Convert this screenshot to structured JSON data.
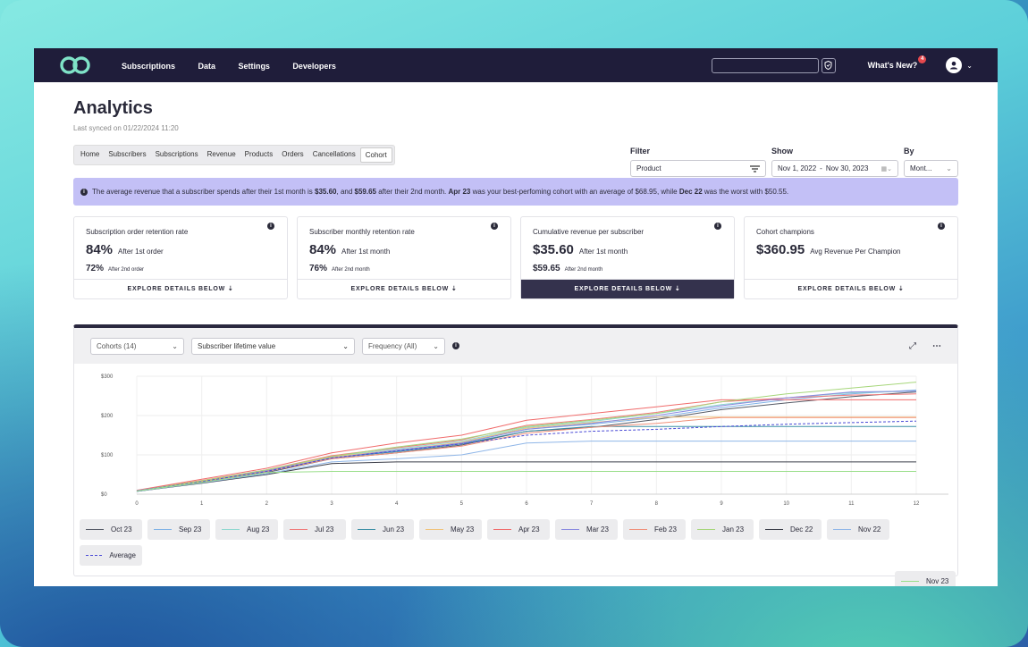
{
  "nav": {
    "items": [
      "Subscriptions",
      "Data",
      "Settings",
      "Developers"
    ],
    "whats_new": "What's New?",
    "whats_new_badge": "4"
  },
  "page": {
    "title": "Analytics",
    "synced": "Last synced on 01/22/2024 11:20"
  },
  "tabs": [
    "Home",
    "Subscribers",
    "Subscriptions",
    "Revenue",
    "Products",
    "Orders",
    "Cancellations",
    "Cohort"
  ],
  "active_tab": "Cohort",
  "filters": {
    "filter_label": "Filter",
    "filter_value": "Product",
    "show_label": "Show",
    "date_from": "Nov 1, 2022",
    "date_sep": "-",
    "date_to": "Nov 30, 2023",
    "by_label": "By",
    "by_value": "Mont..."
  },
  "banner": {
    "t1": "The average revenue that a subscriber spends after their 1st month is ",
    "b1": "$35.60",
    "t2": ", and ",
    "b2": "$59.65",
    "t3": " after their 2nd month. ",
    "b3": "Apr 23",
    "t4": " was your best-perfoming cohort with an average of $68.95, while ",
    "b4": "Dec 22",
    "t5": " was the worst with $50.55."
  },
  "cards": [
    {
      "title": "Subscription order retention rate",
      "big": "84%",
      "big_sub": "After 1st order",
      "small": "72%",
      "small_sub": "After 2nd order",
      "explore": "EXPLORE DETAILS BELOW"
    },
    {
      "title": "Subscriber monthly retention rate",
      "big": "84%",
      "big_sub": "After 1st month",
      "small": "76%",
      "small_sub": "After 2nd month",
      "explore": "EXPLORE DETAILS BELOW"
    },
    {
      "title": "Cumulative revenue per subscriber",
      "big": "$35.60",
      "big_sub": "After 1st month",
      "small": "$59.65",
      "small_sub": "After 2nd month",
      "explore": "EXPLORE DETAILS BELOW"
    },
    {
      "title": "Cohort champions",
      "big": "$360.95",
      "big_sub": "Avg Revenue Per Champion",
      "small": "",
      "small_sub": "",
      "explore": "EXPLORE DETAILS BELOW"
    }
  ],
  "chart_controls": {
    "cohorts": "Cohorts (14)",
    "metric": "Subscriber lifetime value",
    "frequency": "Frequency (All)"
  },
  "chart_data": {
    "type": "line",
    "x": [
      0,
      1,
      2,
      3,
      4,
      5,
      6,
      7,
      8,
      9,
      10,
      11,
      12
    ],
    "ylim": [
      0,
      300
    ],
    "yticks": [
      "$0",
      "$100",
      "$200",
      "$300"
    ],
    "ytick_values": [
      0,
      100,
      200,
      300
    ],
    "grid": true,
    "legend_position": "bottom",
    "series": [
      {
        "name": "Oct 23",
        "color": "#555a66",
        "values": [
          8,
          30,
          55,
          90,
          105,
          125,
          160,
          170,
          190,
          215,
          232,
          248,
          260
        ]
      },
      {
        "name": "Sep 23",
        "color": "#7fb2e6",
        "values": [
          7,
          31,
          57,
          92,
          110,
          130,
          165,
          178,
          195,
          220,
          240,
          255,
          265
        ]
      },
      {
        "name": "Aug 23",
        "color": "#8fd8cf",
        "values": [
          8,
          33,
          60,
          96,
          115,
          135,
          170,
          185,
          205,
          228,
          245,
          258,
          262
        ]
      },
      {
        "name": "Jul 23",
        "color": "#f07a7a",
        "values": [
          9,
          35,
          62,
          98,
          118,
          138,
          175,
          190,
          208,
          235,
          245,
          252,
          255
        ]
      },
      {
        "name": "Jun 23",
        "color": "#3d8fa6",
        "values": [
          8,
          32,
          58,
          93,
          108,
          128,
          160,
          172,
          172,
          172,
          172,
          172,
          172
        ]
      },
      {
        "name": "May 23",
        "color": "#f0c27a",
        "values": [
          9,
          34,
          60,
          95,
          112,
          132,
          168,
          182,
          196,
          196,
          196,
          196,
          196
        ]
      },
      {
        "name": "Apr 23",
        "color": "#f06b6b",
        "values": [
          10,
          38,
          66,
          105,
          130,
          150,
          188,
          205,
          222,
          240,
          240,
          240,
          240
        ]
      },
      {
        "name": "Mar 23",
        "color": "#8a8ae0",
        "values": [
          9,
          33,
          60,
          92,
          112,
          130,
          165,
          180,
          200,
          225,
          245,
          260,
          262
        ]
      },
      {
        "name": "Feb 23",
        "color": "#f0907a",
        "values": [
          8,
          32,
          58,
          90,
          105,
          122,
          155,
          170,
          180,
          195,
          195,
          195,
          195
        ]
      },
      {
        "name": "Jan 23",
        "color": "#a6d67a",
        "values": [
          8,
          34,
          62,
          96,
          120,
          140,
          172,
          188,
          205,
          235,
          255,
          270,
          285
        ]
      },
      {
        "name": "Dec 22",
        "color": "#3a3d48",
        "values": [
          7,
          28,
          50,
          78,
          82,
          82,
          82,
          82,
          82,
          82,
          82,
          82,
          82
        ]
      },
      {
        "name": "Nov 22",
        "color": "#8fb6e8",
        "values": [
          7,
          29,
          52,
          82,
          90,
          100,
          130,
          135,
          135,
          135,
          135,
          135,
          135
        ]
      },
      {
        "name": "Average",
        "color": "#4a4ad6",
        "dashed": true,
        "values": [
          8,
          32,
          58,
          92,
          110,
          128,
          150,
          160,
          165,
          172,
          178,
          182,
          186
        ]
      },
      {
        "name": "Nov 23",
        "color": "#9ade8a",
        "values": [
          8,
          30,
          55,
          58,
          58,
          58,
          58,
          58,
          58,
          58,
          58,
          58,
          58
        ]
      }
    ]
  }
}
